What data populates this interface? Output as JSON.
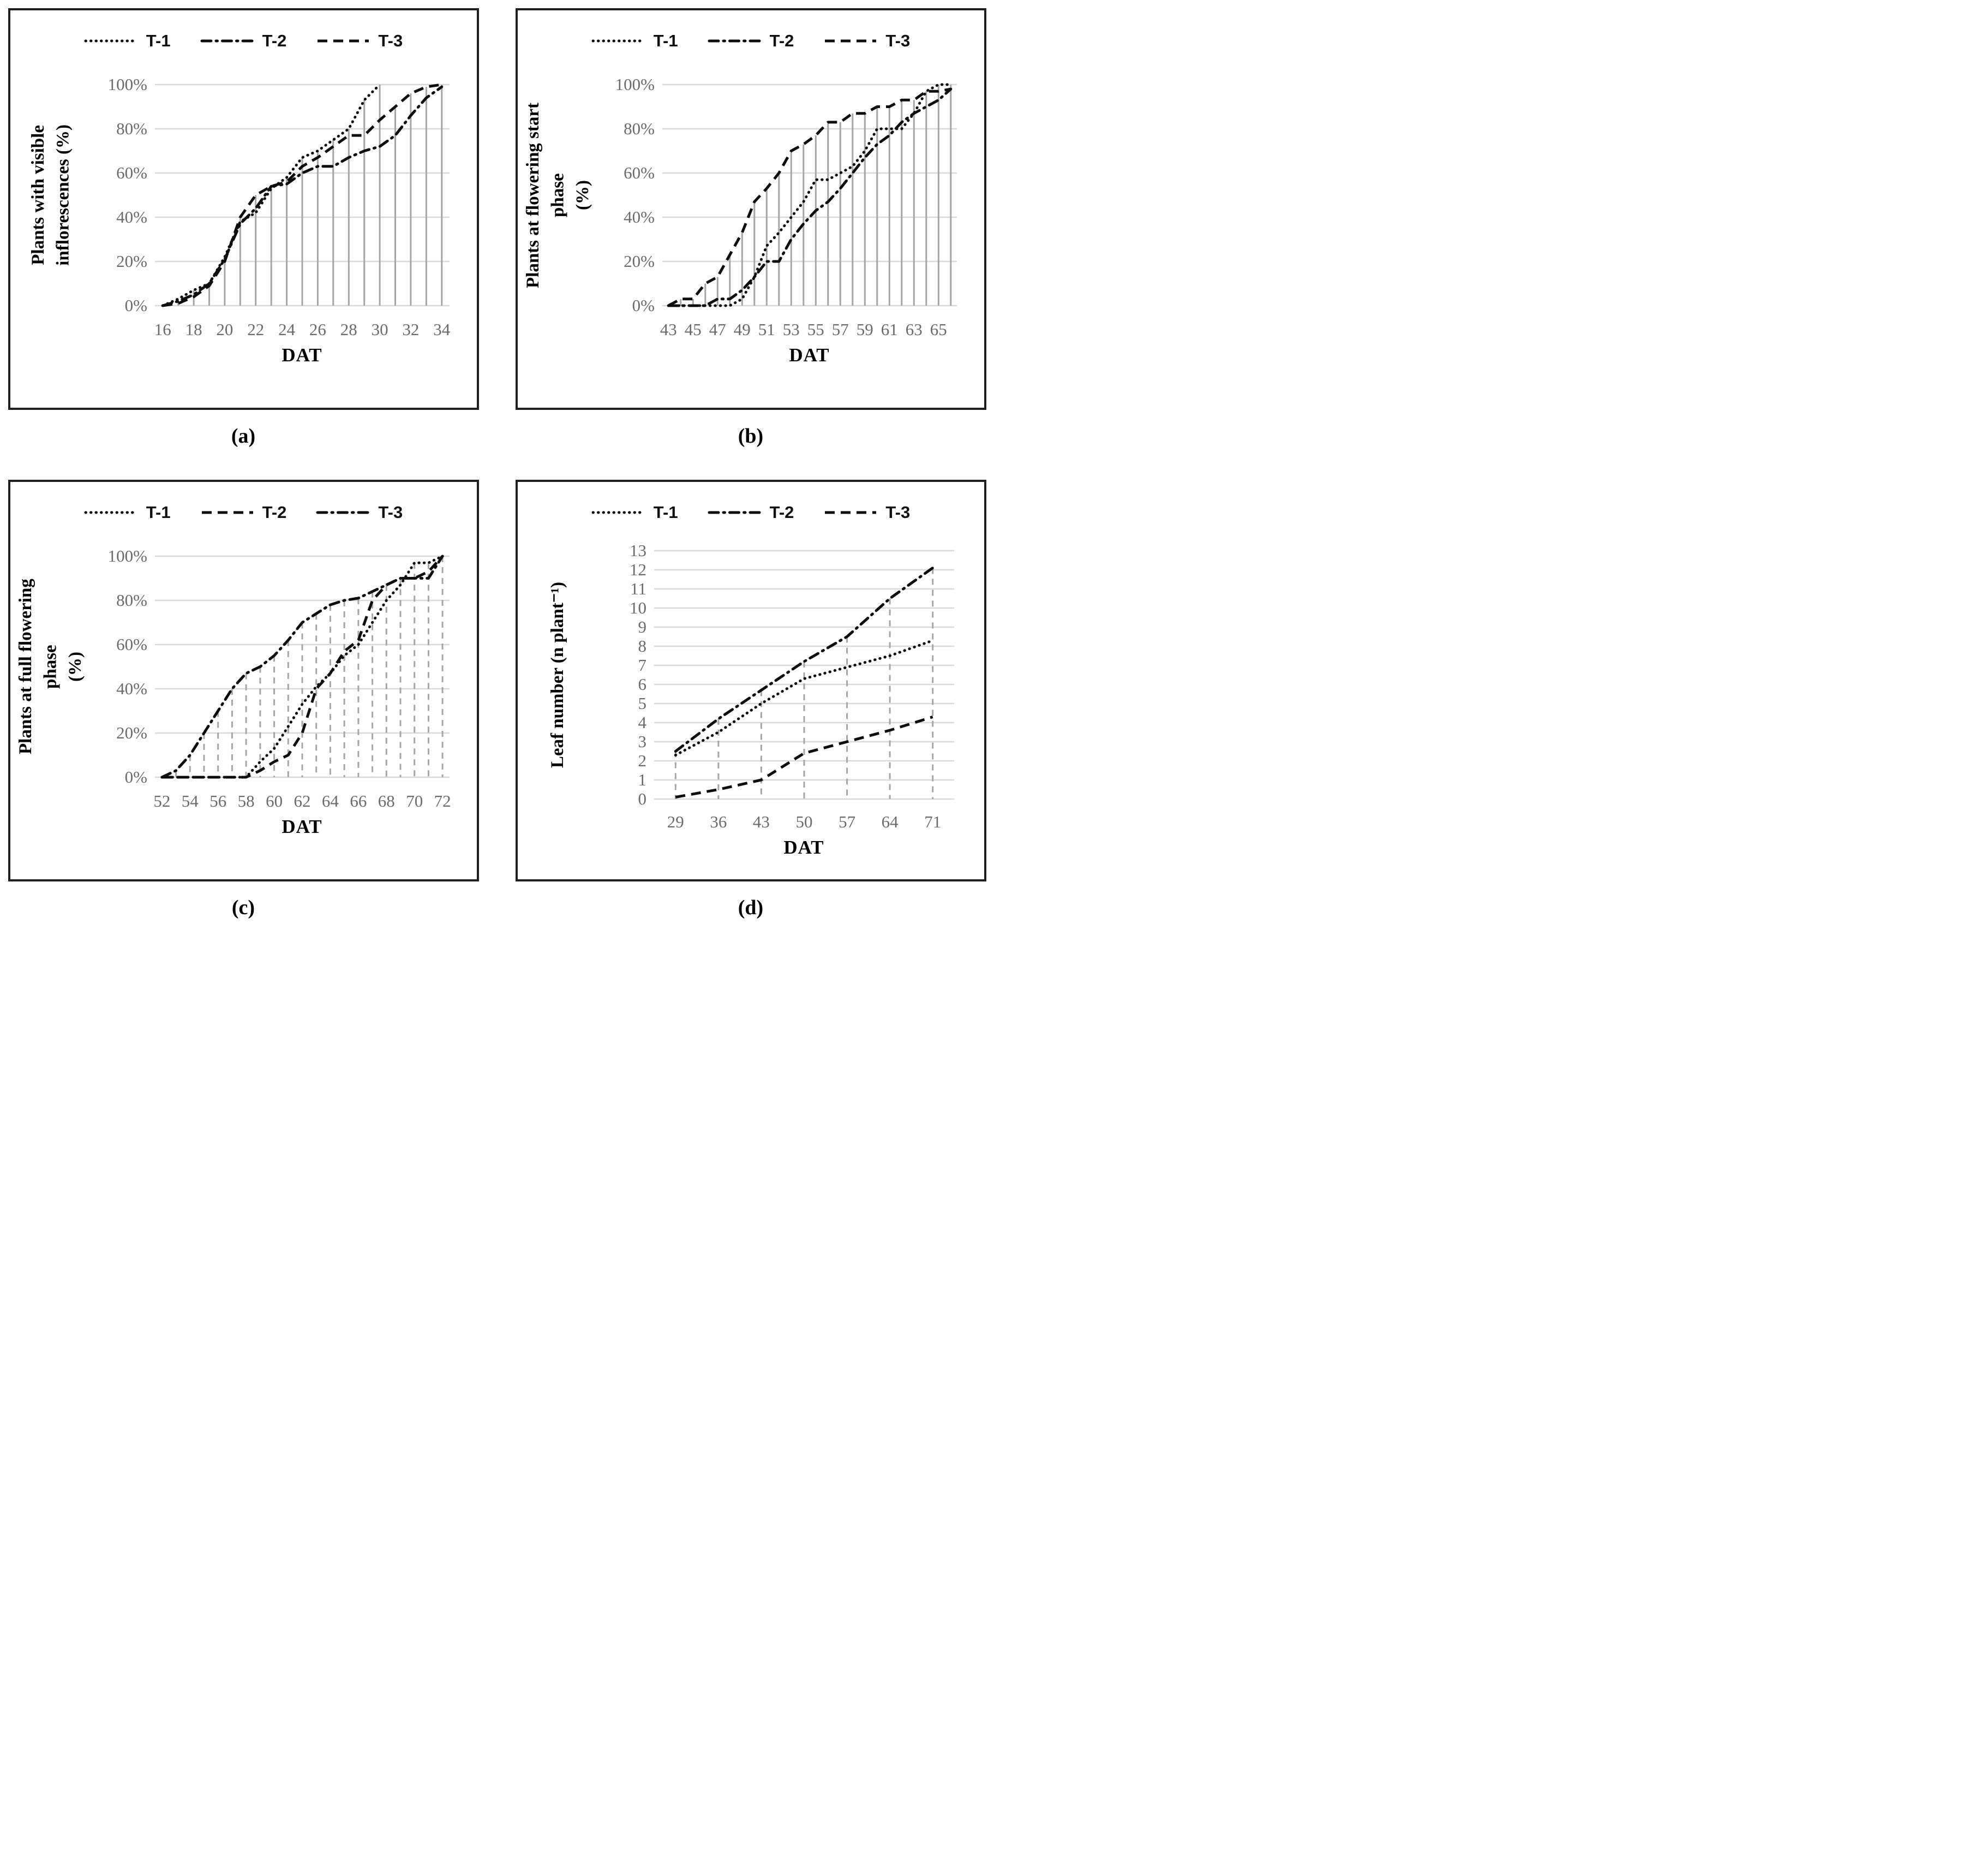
{
  "colors": {
    "series_line": "#0d0d0d",
    "gridline": "#d9d9d9",
    "drop_line": "#a6a6a6",
    "tick_text": "#6b6b6b",
    "axis_title_text": "#000000",
    "panel_border": "#1f1f1f",
    "background": "#ffffff"
  },
  "charts": [
    {
      "id": "a",
      "caption": "(a)",
      "y_title_lines": [
        "Plants with visible",
        "inflorescences (%)"
      ],
      "x_title": "DAT",
      "legend": [
        {
          "label": "T-1",
          "style": "dotted"
        },
        {
          "label": "T-2",
          "style": "dashdot"
        },
        {
          "label": "T-3",
          "style": "dashed"
        }
      ],
      "chart_data": {
        "type": "line",
        "x": [
          16,
          17,
          18,
          19,
          20,
          21,
          22,
          23,
          24,
          25,
          26,
          27,
          28,
          29,
          30,
          31,
          32,
          33,
          34
        ],
        "x_tick_values": [
          16,
          18,
          20,
          22,
          24,
          26,
          28,
          30,
          32,
          34
        ],
        "x_tick_labels": [
          "16",
          "18",
          "20",
          "22",
          "24",
          "26",
          "28",
          "30",
          "32",
          "34"
        ],
        "ylim": [
          0,
          100
        ],
        "y_ticks": [
          {
            "value": 100,
            "label": "100%"
          },
          {
            "value": 80,
            "label": "80%"
          },
          {
            "value": 60,
            "label": "60%"
          },
          {
            "value": 40,
            "label": "40%"
          },
          {
            "value": 20,
            "label": "20%"
          },
          {
            "value": 0,
            "label": "0%"
          }
        ],
        "drop_lines": "solid",
        "legend_position": "top",
        "series": [
          {
            "name": "T-1",
            "style": "dotted",
            "values": [
              0,
              3,
              7,
              10,
              22,
              38,
              42,
              53,
              58,
              67,
              70,
              75,
              80,
              93,
              100,
              null,
              null,
              null,
              null
            ]
          },
          {
            "name": "T-2",
            "style": "dashdot",
            "values": [
              0,
              2,
              5,
              10,
              21,
              37,
              44,
              54,
              55,
              60,
              63,
              63,
              67,
              70,
              72,
              77,
              86,
              94,
              99
            ]
          },
          {
            "name": "T-3",
            "style": "dashed",
            "values": [
              0,
              1,
              4,
              9,
              20,
              40,
              50,
              54,
              56,
              63,
              67,
              72,
              77,
              77,
              84,
              90,
              96,
              99,
              100
            ]
          }
        ]
      }
    },
    {
      "id": "b",
      "caption": "(b)",
      "y_title_lines": [
        "Plants at flowering start phase",
        "(%)"
      ],
      "x_title": "DAT",
      "legend": [
        {
          "label": "T-1",
          "style": "dotted"
        },
        {
          "label": "T-2",
          "style": "dashdot"
        },
        {
          "label": "T-3",
          "style": "dashed"
        }
      ],
      "chart_data": {
        "type": "line",
        "x": [
          43,
          44,
          45,
          46,
          47,
          48,
          49,
          50,
          51,
          52,
          53,
          54,
          55,
          56,
          57,
          58,
          59,
          60,
          61,
          62,
          63,
          64,
          65,
          66
        ],
        "x_tick_values": [
          43,
          45,
          47,
          49,
          51,
          53,
          55,
          57,
          59,
          61,
          63,
          65
        ],
        "x_tick_labels": [
          "43",
          "45",
          "47",
          "49",
          "51",
          "53",
          "55",
          "57",
          "59",
          "61",
          "63",
          "65"
        ],
        "ylim": [
          0,
          100
        ],
        "y_ticks": [
          {
            "value": 100,
            "label": "100%"
          },
          {
            "value": 80,
            "label": "80%"
          },
          {
            "value": 60,
            "label": "60%"
          },
          {
            "value": 40,
            "label": "40%"
          },
          {
            "value": 20,
            "label": "20%"
          },
          {
            "value": 0,
            "label": "0%"
          }
        ],
        "drop_lines": "solid",
        "legend_position": "top",
        "series": [
          {
            "name": "T-1",
            "style": "dotted",
            "values": [
              0,
              0,
              0,
              0,
              0,
              0,
              3,
              13,
              27,
              33,
              40,
              47,
              57,
              57,
              60,
              63,
              70,
              80,
              80,
              80,
              87,
              97,
              100,
              100
            ]
          },
          {
            "name": "T-2",
            "style": "dashdot",
            "values": [
              0,
              0,
              0,
              0,
              3,
              3,
              7,
              13,
              20,
              20,
              30,
              37,
              43,
              47,
              53,
              60,
              67,
              73,
              77,
              83,
              87,
              90,
              93,
              98
            ]
          },
          {
            "name": "T-3",
            "style": "dashed",
            "values": [
              0,
              3,
              3,
              10,
              13,
              23,
              33,
              47,
              53,
              60,
              70,
              73,
              77,
              83,
              83,
              87,
              87,
              90,
              90,
              93,
              93,
              97,
              97,
              98
            ]
          }
        ]
      }
    },
    {
      "id": "c",
      "caption": "(c)",
      "y_title_lines": [
        "Plants at full flowering phase",
        "(%)"
      ],
      "x_title": "DAT",
      "legend": [
        {
          "label": "T-1",
          "style": "dotted"
        },
        {
          "label": "T-2",
          "style": "dashed"
        },
        {
          "label": "T-3",
          "style": "dashdot"
        }
      ],
      "chart_data": {
        "type": "line",
        "x": [
          52,
          53,
          54,
          55,
          56,
          57,
          58,
          59,
          60,
          61,
          62,
          63,
          64,
          65,
          66,
          67,
          68,
          69,
          70,
          71,
          72
        ],
        "x_tick_values": [
          52,
          54,
          56,
          58,
          60,
          62,
          64,
          66,
          68,
          70,
          72
        ],
        "x_tick_labels": [
          "52",
          "54",
          "56",
          "58",
          "60",
          "62",
          "64",
          "66",
          "68",
          "70",
          "72"
        ],
        "ylim": [
          0,
          100
        ],
        "y_ticks": [
          {
            "value": 100,
            "label": "100%"
          },
          {
            "value": 80,
            "label": "80%"
          },
          {
            "value": 60,
            "label": "60%"
          },
          {
            "value": 40,
            "label": "40%"
          },
          {
            "value": 20,
            "label": "20%"
          },
          {
            "value": 0,
            "label": "0%"
          }
        ],
        "drop_lines": "dashed",
        "legend_position": "top",
        "series": [
          {
            "name": "T-1",
            "style": "dotted",
            "values": [
              0,
              0,
              0,
              0,
              0,
              0,
              0,
              7,
              13,
              23,
              33,
              41,
              47,
              55,
              60,
              70,
              80,
              87,
              97,
              97,
              100
            ]
          },
          {
            "name": "T-2",
            "style": "dashed",
            "values": [
              0,
              0,
              0,
              0,
              0,
              0,
              0,
              3,
              7,
              10,
              20,
              40,
              47,
              57,
              62,
              80,
              87,
              90,
              90,
              93,
              100
            ]
          },
          {
            "name": "T-3",
            "style": "dashdot",
            "values": [
              0,
              3,
              10,
              20,
              30,
              40,
              47,
              50,
              55,
              62,
              70,
              74,
              78,
              80,
              81,
              84,
              87,
              90,
              90,
              90,
              100
            ]
          }
        ]
      }
    },
    {
      "id": "d",
      "caption": "(d)",
      "y_title_lines": [
        "Leaf number (n plant⁻¹)"
      ],
      "x_title": "DAT",
      "legend": [
        {
          "label": "T-1",
          "style": "dotted"
        },
        {
          "label": "T-2",
          "style": "dashdot"
        },
        {
          "label": "T-3",
          "style": "dashed"
        }
      ],
      "chart_data": {
        "type": "line",
        "x": [
          29,
          36,
          43,
          50,
          57,
          64,
          71
        ],
        "x_tick_values": [
          29,
          36,
          43,
          50,
          57,
          64,
          71
        ],
        "x_tick_labels": [
          "29",
          "36",
          "43",
          "50",
          "57",
          "64",
          "71"
        ],
        "ylim": [
          0,
          13
        ],
        "y_ticks": [
          {
            "value": 13,
            "label": "13"
          },
          {
            "value": 12,
            "label": "12"
          },
          {
            "value": 11,
            "label": "11"
          },
          {
            "value": 10,
            "label": "10"
          },
          {
            "value": 9,
            "label": "9"
          },
          {
            "value": 8,
            "label": "8"
          },
          {
            "value": 7,
            "label": "7"
          },
          {
            "value": 6,
            "label": "6"
          },
          {
            "value": 5,
            "label": "5"
          },
          {
            "value": 4,
            "label": "4"
          },
          {
            "value": 3,
            "label": "3"
          },
          {
            "value": 2,
            "label": "2"
          },
          {
            "value": 1,
            "label": "1"
          },
          {
            "value": 0,
            "label": "0"
          }
        ],
        "drop_lines": "dashed",
        "legend_position": "top",
        "series": [
          {
            "name": "T-1",
            "style": "dotted",
            "values": [
              2.3,
              3.5,
              5.0,
              6.3,
              6.9,
              7.5,
              8.3
            ]
          },
          {
            "name": "T-2",
            "style": "dashdot",
            "values": [
              2.5,
              4.2,
              5.7,
              7.2,
              8.5,
              10.5,
              12.1
            ]
          },
          {
            "name": "T-3",
            "style": "dashed",
            "values": [
              0.1,
              0.5,
              1.0,
              2.4,
              3.0,
              3.6,
              4.3
            ]
          }
        ]
      }
    }
  ]
}
